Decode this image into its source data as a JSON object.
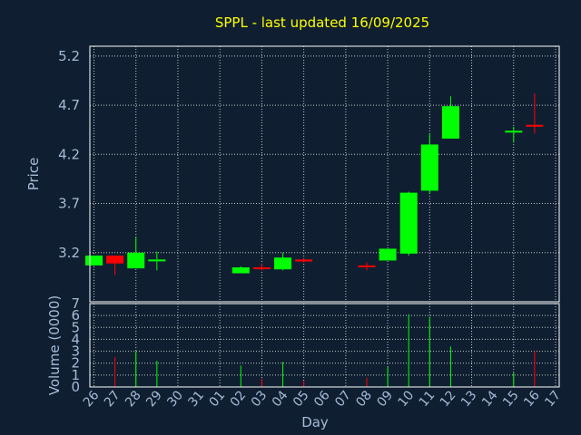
{
  "chart_data": [
    {
      "type": "candlestick",
      "title": "SPPL - last updated 16/09/2025",
      "ylabel": "Price",
      "y_ticks": [
        3.2,
        3.7,
        4.2,
        4.7,
        5.2
      ],
      "ylim": [
        2.7,
        5.3
      ],
      "grid": true,
      "up_color": "#00ff00",
      "down_color": "#ff0000",
      "day_labels": [
        "26",
        "27",
        "28",
        "29",
        "30",
        "31",
        "01",
        "02",
        "03",
        "04",
        "05",
        "06",
        "07",
        "08",
        "09",
        "10",
        "11",
        "12",
        "13",
        "14",
        "15",
        "16",
        "17"
      ],
      "candles": [
        {
          "day": "26",
          "open": 3.07,
          "high": 3.17,
          "low": 3.07,
          "close": 3.17
        },
        {
          "day": "27",
          "open": 3.17,
          "high": 3.17,
          "low": 2.97,
          "close": 3.09
        },
        {
          "day": "28",
          "open": 3.04,
          "high": 3.36,
          "low": 3.04,
          "close": 3.2
        },
        {
          "day": "29",
          "open": 3.12,
          "high": 3.21,
          "low": 3.02,
          "close": 3.13
        },
        {
          "day": "02",
          "open": 2.99,
          "high": 3.06,
          "low": 2.99,
          "close": 3.05
        },
        {
          "day": "03",
          "open": 3.05,
          "high": 3.09,
          "low": 3.02,
          "close": 3.04
        },
        {
          "day": "04",
          "open": 3.03,
          "high": 3.2,
          "low": 3.02,
          "close": 3.15
        },
        {
          "day": "05",
          "open": 3.13,
          "high": 3.14,
          "low": 3.1,
          "close": 3.11
        },
        {
          "day": "08",
          "open": 3.07,
          "high": 3.1,
          "low": 3.02,
          "close": 3.06
        },
        {
          "day": "09",
          "open": 3.12,
          "high": 3.24,
          "low": 3.12,
          "close": 3.24
        },
        {
          "day": "10",
          "open": 3.19,
          "high": 3.82,
          "low": 3.17,
          "close": 3.81
        },
        {
          "day": "11",
          "open": 3.83,
          "high": 4.41,
          "low": 3.8,
          "close": 4.3
        },
        {
          "day": "12",
          "open": 4.36,
          "high": 4.79,
          "low": 4.36,
          "close": 4.69
        },
        {
          "day": "15",
          "open": 4.43,
          "high": 4.48,
          "low": 4.32,
          "close": 4.44
        },
        {
          "day": "16",
          "open": 4.5,
          "high": 4.82,
          "low": 4.41,
          "close": 4.49
        }
      ]
    },
    {
      "type": "bar",
      "ylabel": "Volume (0000)",
      "xlabel": "Day",
      "y_ticks": [
        0,
        1,
        2,
        3,
        4,
        5,
        6,
        7
      ],
      "ylim": [
        0,
        7
      ],
      "grid": true,
      "categories": [
        "26",
        "27",
        "28",
        "29",
        "30",
        "31",
        "01",
        "02",
        "03",
        "04",
        "05",
        "06",
        "07",
        "08",
        "09",
        "10",
        "11",
        "12",
        "13",
        "14",
        "15",
        "16",
        "17"
      ],
      "volumes": [
        {
          "day": "27",
          "value": 2.5,
          "up": false
        },
        {
          "day": "28",
          "value": 3.0,
          "up": true
        },
        {
          "day": "29",
          "value": 2.2,
          "up": true
        },
        {
          "day": "02",
          "value": 1.8,
          "up": true
        },
        {
          "day": "03",
          "value": 0.7,
          "up": false
        },
        {
          "day": "04",
          "value": 2.1,
          "up": true
        },
        {
          "day": "05",
          "value": 0.5,
          "up": false
        },
        {
          "day": "08",
          "value": 0.8,
          "up": false
        },
        {
          "day": "09",
          "value": 1.7,
          "up": true
        },
        {
          "day": "10",
          "value": 6.1,
          "up": true
        },
        {
          "day": "11",
          "value": 5.9,
          "up": true
        },
        {
          "day": "12",
          "value": 3.4,
          "up": true
        },
        {
          "day": "15",
          "value": 1.2,
          "up": true
        },
        {
          "day": "16",
          "value": 3.0,
          "up": false
        }
      ]
    }
  ]
}
